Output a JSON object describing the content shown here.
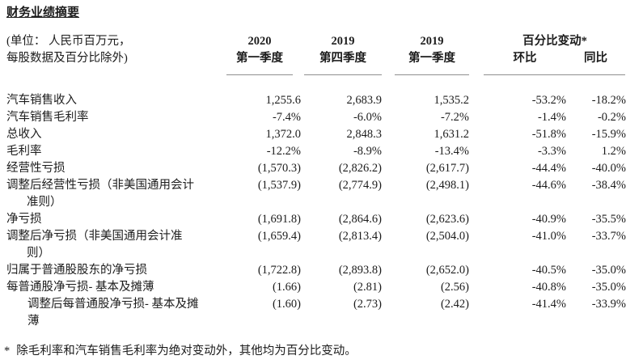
{
  "title": "财务业绩摘要",
  "unit_note": {
    "line1": "(单位： 人民币百万元，",
    "line2": "每股数据及百分比除外)"
  },
  "colors": {
    "text": "#1c1c1c",
    "rule": "#8f8f8f",
    "background": "#ffffff"
  },
  "table": {
    "col_headers": [
      {
        "year": "2020",
        "quarter": "第一季度"
      },
      {
        "year": "2019",
        "quarter": "第四季度"
      },
      {
        "year": "2019",
        "quarter": "第一季度"
      }
    ],
    "pct_group": {
      "label": "百分比变动*",
      "sub": [
        "环比",
        "同比"
      ]
    },
    "rows": [
      {
        "label": "汽车销售收入",
        "values": [
          "1,255.6",
          "2,683.9",
          "1,535.2",
          "-53.2%",
          "-18.2%"
        ]
      },
      {
        "label": "汽车销售毛利率",
        "values": [
          "-7.4%",
          "-6.0%",
          "-7.2%",
          "-1.4%",
          "-0.2%"
        ]
      },
      {
        "label": "总收入",
        "values": [
          "1,372.0",
          "2,848.3",
          "1,631.2",
          "-51.8%",
          "-15.9%"
        ]
      },
      {
        "label": "毛利率",
        "values": [
          "-12.2%",
          "-8.9%",
          "-13.4%",
          "-3.3%",
          "1.2%"
        ]
      },
      {
        "label": "经营性亏损",
        "values": [
          "(1,570.3)",
          "(2,826.2)",
          "(2,617.7)",
          "-44.4%",
          "-40.0%"
        ]
      },
      {
        "label": "调整后经营性亏损（非美国通用会计\n准则）",
        "values": [
          "(1,537.9)",
          "(2,774.9)",
          "(2,498.1)",
          "-44.6%",
          "-38.4%"
        ]
      },
      {
        "label": "净亏损",
        "values": [
          "(1,691.8)",
          "(2,864.6)",
          "(2,623.6)",
          "-40.9%",
          "-35.5%"
        ]
      },
      {
        "label": "调整后净亏损（非美国通用会计准\n则）",
        "values": [
          "(1,659.4)",
          "(2,813.4)",
          "(2,504.0)",
          "-41.0%",
          "-33.7%"
        ]
      },
      {
        "label": "归属于普通股股东的净亏损",
        "values": [
          "(1,722.8)",
          "(2,893.8)",
          "(2,652.0)",
          "-40.5%",
          "-35.0%"
        ]
      },
      {
        "label": "每普通股净亏损- 基本及摊薄",
        "values": [
          "(1.66)",
          "(2.81)",
          "(2.56)",
          "-40.8%",
          "-35.0%"
        ]
      },
      {
        "label": "调整后每普通股净亏损- 基本及摊\n薄",
        "values": [
          "(1.60)",
          "(2.73)",
          "(2.42)",
          "-41.4%",
          "-33.9%"
        ]
      }
    ]
  },
  "footnote": {
    "marker": "*",
    "text": "除毛利率和汽车销售毛利率为绝对变动外，其他均为百分比变动。"
  }
}
